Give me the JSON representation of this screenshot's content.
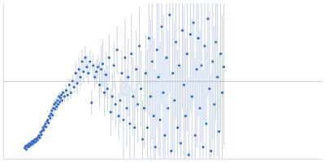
{
  "chart_data": {
    "type": "scatter",
    "color": "#3a6bc6",
    "marker": "circle",
    "tick_labels": false,
    "grid": true,
    "xlim": [
      0,
      400
    ],
    "xticks": [],
    "ylim": [
      -1,
      1
    ],
    "yticks": [
      0
    ],
    "x": [
      27,
      28,
      29,
      30,
      31,
      32,
      33,
      34,
      35,
      36,
      37,
      38,
      39,
      40,
      41,
      42,
      43,
      44,
      45,
      46,
      47,
      48,
      49,
      50,
      51,
      52,
      53,
      54,
      55,
      56,
      57,
      58,
      59,
      60,
      61,
      62,
      63,
      64,
      65,
      66,
      67,
      68,
      69,
      70,
      71,
      72,
      73,
      74,
      75,
      77,
      79,
      81,
      83,
      85,
      87,
      89,
      91,
      93,
      95,
      97,
      99,
      101,
      103,
      105,
      107,
      109,
      111,
      113,
      115,
      117,
      119,
      121,
      123,
      125,
      127,
      129,
      131,
      133,
      135,
      137,
      139,
      141,
      143,
      145,
      147,
      149,
      151,
      153,
      155,
      157,
      159,
      161,
      163,
      165,
      167,
      169,
      171,
      173,
      175,
      177,
      179,
      181,
      183,
      185,
      187,
      189,
      191,
      193,
      195,
      197,
      199,
      201,
      203,
      205,
      207,
      209,
      211,
      213,
      215,
      217,
      219,
      221,
      223,
      225,
      227,
      229,
      231,
      233,
      235,
      237,
      239,
      241,
      243,
      245,
      247,
      249,
      251,
      253,
      255,
      257,
      259,
      261,
      263,
      265,
      267,
      269,
      271,
      273,
      275,
      277
    ],
    "values": [
      -0.86,
      -0.84,
      -0.88,
      -0.83,
      -0.85,
      -0.81,
      -0.84,
      -0.8,
      -0.82,
      -0.78,
      -0.81,
      -0.77,
      -0.79,
      -0.75,
      -0.78,
      -0.74,
      -0.76,
      -0.72,
      -0.7,
      -0.73,
      -0.66,
      -0.69,
      -0.64,
      -0.6,
      -0.63,
      -0.58,
      -0.55,
      -0.59,
      -0.52,
      -0.5,
      -0.54,
      -0.45,
      -0.48,
      -0.42,
      -0.38,
      -0.44,
      -0.35,
      -0.3,
      -0.36,
      -0.28,
      -0.33,
      -0.25,
      -0.3,
      -0.2,
      -0.27,
      -0.22,
      -0.18,
      -0.25,
      -0.15,
      -0.2,
      -0.12,
      -0.18,
      -0.05,
      -0.15,
      0.0,
      -0.08,
      0.1,
      -0.03,
      0.15,
      0.05,
      0.25,
      0.12,
      0.3,
      0.18,
      0.1,
      0.25,
      -0.28,
      0.2,
      0.05,
      0.12,
      0.18,
      -0.05,
      0.15,
      0.22,
      -0.15,
      0.08,
      -0.1,
      0.3,
      -0.4,
      -0.2,
      0.2,
      -0.3,
      0.4,
      -0.45,
      -0.25,
      0.1,
      -0.5,
      0.3,
      -0.35,
      0.05,
      -0.55,
      0.35,
      -0.2,
      -0.6,
      0.15,
      -0.3,
      0.45,
      -0.1,
      -0.75,
      -0.35,
      0.1,
      -0.6,
      0.55,
      -0.2,
      0.25,
      -0.45,
      -0.85,
      0.4,
      0.05,
      -0.5,
      0.7,
      -0.15,
      -0.7,
      0.3,
      -0.35,
      0.85,
      -0.9,
      0.1,
      -0.25,
      0.5,
      -0.6,
      0.2,
      -0.8,
      0.65,
      -0.05,
      -0.45,
      0.35,
      -0.95,
      0.6,
      -0.2,
      0.75,
      -0.7,
      0.15,
      0.55,
      -0.35,
      0.2,
      -0.85,
      0.45,
      -0.55,
      0.8,
      -0.1,
      -0.9,
      0.25,
      -0.3,
      0.5,
      0.05,
      -0.65,
      0.35,
      -0.15,
      0.18
    ],
    "errors": [
      0.03,
      0.03,
      0.03,
      0.03,
      0.03,
      0.03,
      0.03,
      0.03,
      0.03,
      0.03,
      0.03,
      0.03,
      0.03,
      0.03,
      0.03,
      0.03,
      0.03,
      0.03,
      0.03,
      0.03,
      0.03,
      0.03,
      0.03,
      0.03,
      0.03,
      0.03,
      0.03,
      0.03,
      0.03,
      0.03,
      0.03,
      0.03,
      0.03,
      0.06,
      0.06,
      0.06,
      0.06,
      0.06,
      0.06,
      0.06,
      0.06,
      0.06,
      0.06,
      0.06,
      0.06,
      0.06,
      0.06,
      0.06,
      0.06,
      0.08,
      0.08,
      0.08,
      0.08,
      0.08,
      0.08,
      0.08,
      0.15,
      0.15,
      0.15,
      0.15,
      0.15,
      0.15,
      0.15,
      0.15,
      0.15,
      0.15,
      0.15,
      0.15,
      0.15,
      0.15,
      0.15,
      0.3,
      0.3,
      0.3,
      0.3,
      0.3,
      0.3,
      0.3,
      0.3,
      0.3,
      0.3,
      0.3,
      0.3,
      0.3,
      0.3,
      0.3,
      0.5,
      0.5,
      0.5,
      0.5,
      0.5,
      0.5,
      0.5,
      0.5,
      0.5,
      0.5,
      0.5,
      0.5,
      0.5,
      0.5,
      0.5,
      1.0,
      1.0,
      1.0,
      1.0,
      1.0,
      1.0,
      1.0,
      1.0,
      1.0,
      1.0,
      1.0,
      1.0,
      1.0,
      1.0,
      1.0,
      1.0,
      1.0,
      1.0,
      1.0,
      1.0,
      1.0,
      1.0,
      1.0,
      1.0,
      1.0,
      1.0,
      1.0,
      1.0,
      1.0,
      1.0,
      1.0,
      1.0,
      1.0,
      1.0,
      1.0,
      1.0,
      1.0,
      1.0,
      1.0,
      1.0,
      1.0,
      1.0,
      1.0,
      1.0,
      1.0,
      1.0,
      1.0,
      1.0,
      1.0
    ]
  }
}
